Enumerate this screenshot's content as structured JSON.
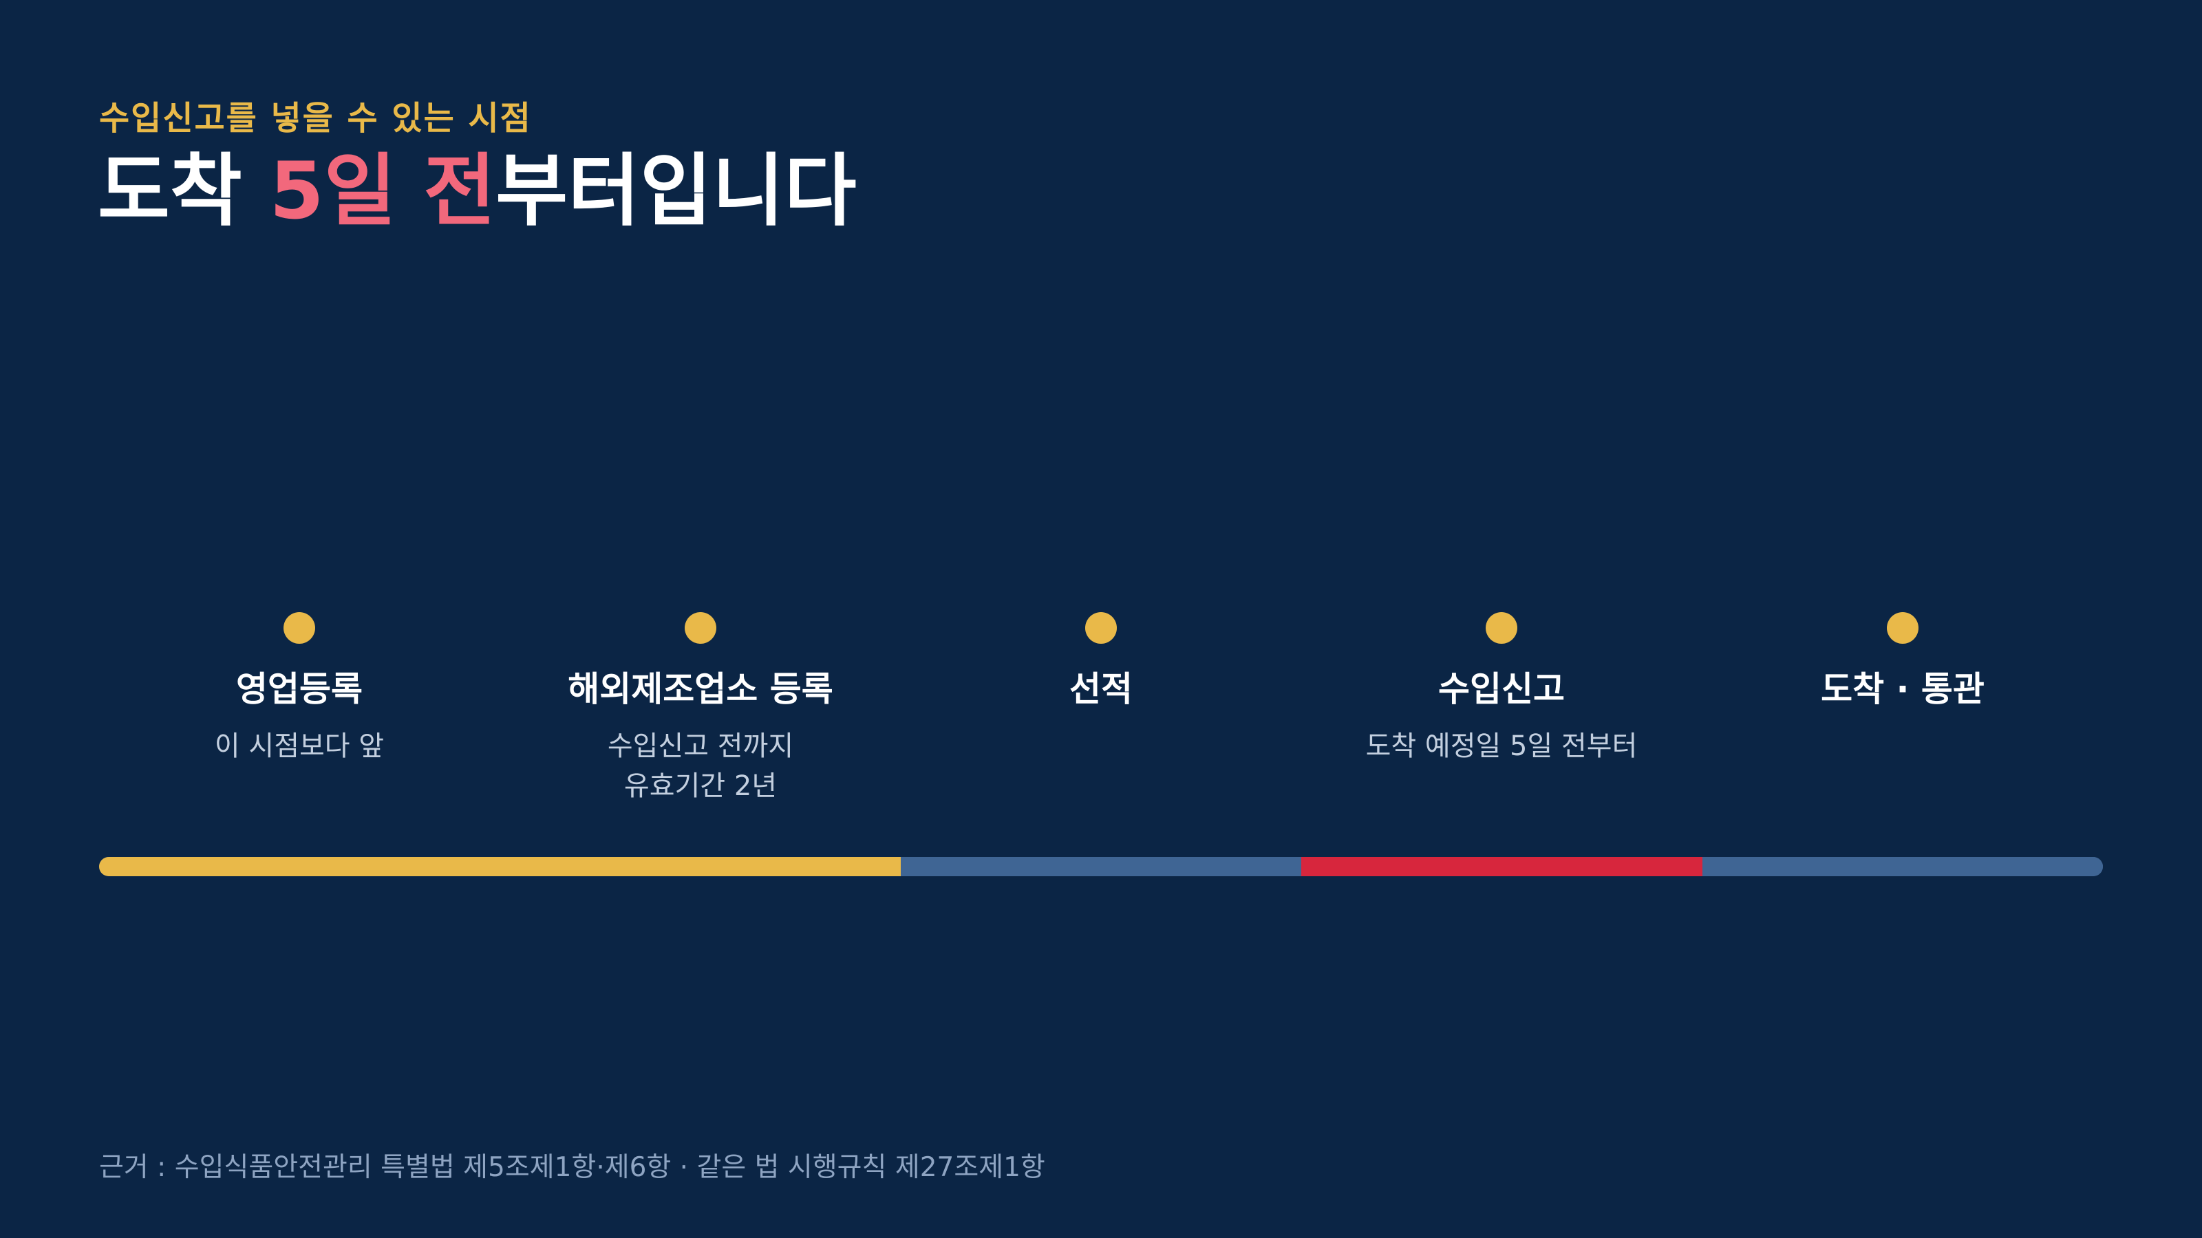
{
  "header": {
    "eyebrow": "수입신고를 넣을 수 있는 시점",
    "title_prefix": "도착 ",
    "title_accent": "5일 전",
    "title_suffix": "부터입니다"
  },
  "timeline": {
    "steps": [
      {
        "label": "영업등록",
        "desc": "이 시점보다 앞"
      },
      {
        "label": "해외제조업소 등록",
        "desc": "수입신고 전까지\n유효기간 2년"
      },
      {
        "label": "선적",
        "desc": ""
      },
      {
        "label": "수입신고",
        "desc": "도착 예정일 5일 전부터"
      },
      {
        "label": "도착 · 통관",
        "desc": ""
      }
    ],
    "bar_segments": [
      {
        "from_step": 0,
        "to_step": 2,
        "color": "#e9b949"
      },
      {
        "from_step": 2,
        "to_step": 3,
        "color": "#3f6594"
      },
      {
        "from_step": 3,
        "to_step": 4,
        "color": "#d7263d"
      },
      {
        "from_step": 4,
        "to_step": 5,
        "color": "#3f6594"
      }
    ]
  },
  "colors": {
    "background": "#0b2545",
    "dot": "#e9b949",
    "accent_text": "#f2687c"
  },
  "footer": {
    "source": "근거 : 수입식품안전관리 특별법 제5조제1항·제6항 · 같은 법 시행규칙 제27조제1항"
  }
}
